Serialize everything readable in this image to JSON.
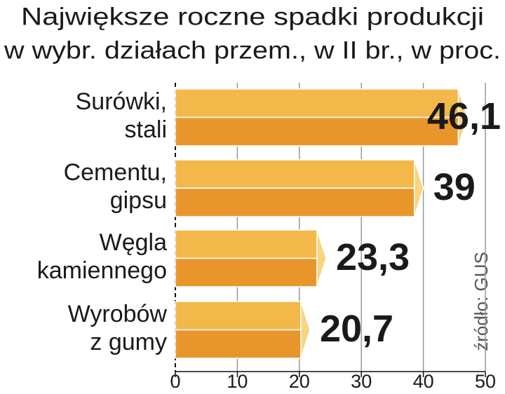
{
  "chart_data": {
    "type": "bar",
    "orientation": "horizontal",
    "title": [
      "Największe roczne spadki produkcji",
      "w wybr. działach przem., w II br., w proc."
    ],
    "categories": [
      [
        "Surówki,",
        "stali"
      ],
      [
        "Cementu,",
        "gipsu"
      ],
      [
        "Węgla",
        "kamiennego"
      ],
      [
        "Wyrobów",
        "z gumy"
      ]
    ],
    "values": [
      46.1,
      39,
      23.3,
      20.7
    ],
    "value_labels": [
      "46,1",
      "39",
      "23,3",
      "20,7"
    ],
    "xlim": [
      0,
      50
    ],
    "xticks": [
      0,
      10,
      20,
      30,
      40,
      50
    ],
    "grid": true,
    "colors": {
      "top": "#f2b84a",
      "bottom": "#e8962c",
      "tip": "#f8d57e"
    },
    "source": "źródło: GUS"
  }
}
